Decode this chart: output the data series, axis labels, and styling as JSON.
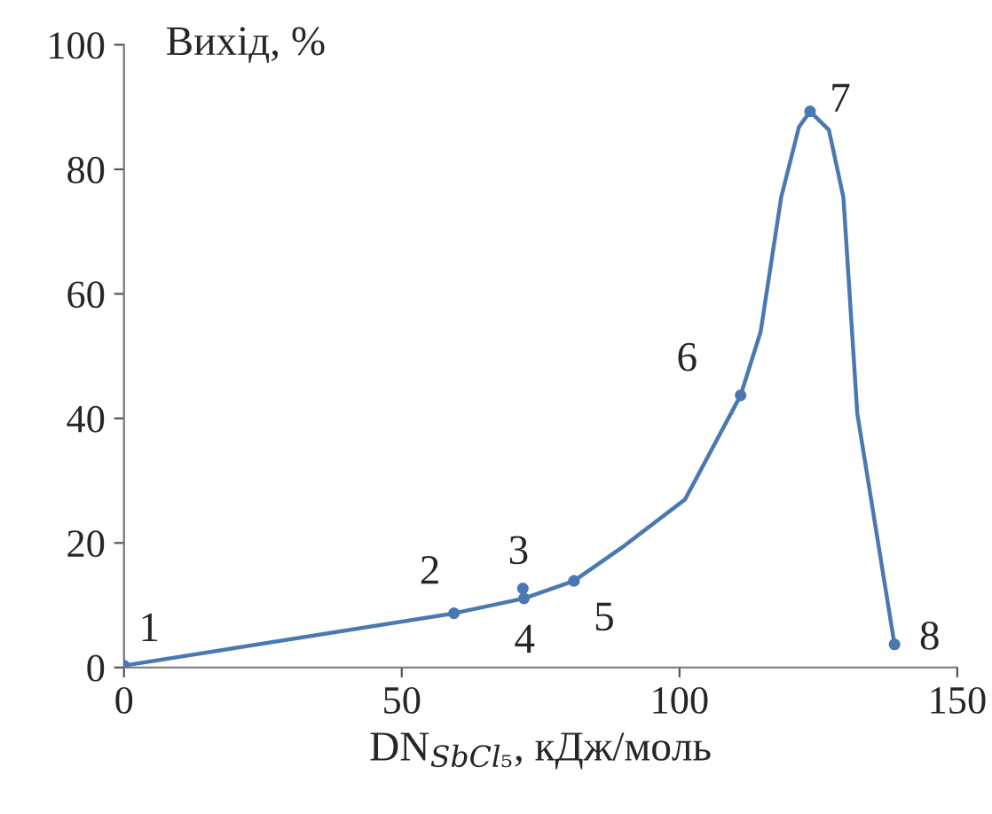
{
  "chart_data": {
    "type": "line",
    "xlabel": "DN$_{SbCl₅}$, кДж/моль",
    "ylabel": "Вихід, %",
    "xlim": [
      0,
      150
    ],
    "ylim": [
      0,
      100
    ],
    "xticks": [
      0,
      50,
      100,
      150
    ],
    "yticks": [
      0,
      20,
      40,
      60,
      80,
      100
    ],
    "grid": false,
    "legend": false,
    "series": [
      {
        "color": "#4a78b0",
        "marker": "none",
        "x": [
          0,
          59.4,
          72,
          81,
          90,
          101,
          111,
          114.6,
          118.3,
          121.5,
          123.5,
          126.9,
          129.5,
          132,
          138.7
        ],
        "values": [
          0.3,
          8.7,
          11.1,
          13.9,
          19.5,
          27,
          43.7,
          53.9,
          75.5,
          86.8,
          89.3,
          86.3,
          75.5,
          40.8,
          3.7
        ]
      },
      {
        "type": "scatter",
        "color": "#4a78b0",
        "marker": "circle",
        "x": [
          0,
          59.4,
          71.8,
          72,
          81,
          111,
          123.5,
          138.7
        ],
        "values": [
          0.3,
          8.7,
          12.7,
          11.1,
          13.9,
          43.7,
          89.3,
          3.7
        ]
      }
    ],
    "annotations": [
      {
        "text": "1",
        "x": 0,
        "y": 0.3
      },
      {
        "text": "2",
        "x": 59.4,
        "y": 8.7
      },
      {
        "text": "3",
        "x": 71.8,
        "y": 12.7
      },
      {
        "text": "4",
        "x": 72,
        "y": 11.1
      },
      {
        "text": "5",
        "x": 81,
        "y": 13.9
      },
      {
        "text": "6",
        "x": 111,
        "y": 43.7
      },
      {
        "text": "7",
        "x": 123.5,
        "y": 89.3
      },
      {
        "text": "8",
        "x": 138.7,
        "y": 3.7
      }
    ]
  }
}
